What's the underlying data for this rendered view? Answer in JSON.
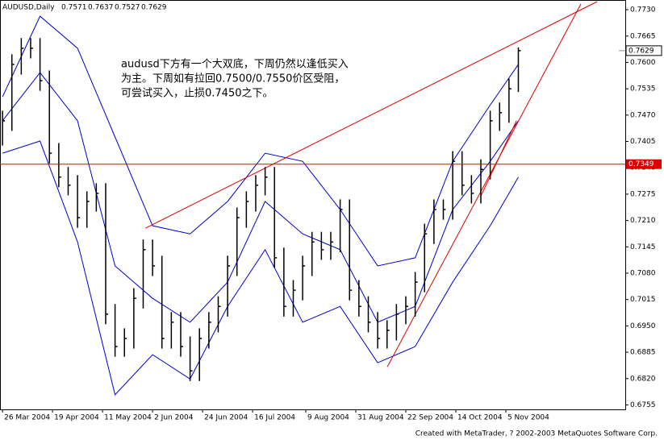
{
  "chart_data": {
    "type": "hlc",
    "title": "AUDUSD,Daily",
    "header_values": [
      0.7571,
      0.7637,
      0.7527,
      0.7629
    ],
    "annotation": [
      "audusd下方有一个大双底，下周仍然以逢低买入",
      "为主。下周如有拉回0.7500/0.7550价区受阻，",
      "可尝试买入，止损0.7450之下。"
    ],
    "footer": "Created with MetaTrader, ? 2002-2003 MetaQuotes Software Corp.",
    "color": "#000000",
    "x": [
      0,
      3,
      6,
      9,
      12,
      15,
      18,
      21,
      24,
      27,
      30,
      33,
      36,
      39,
      42,
      45,
      48,
      51,
      54,
      57,
      60,
      63,
      66,
      69,
      72,
      75,
      78,
      81,
      84,
      87,
      90,
      93,
      96,
      99,
      102,
      105,
      108,
      111,
      114,
      117,
      120,
      123,
      126,
      129,
      132,
      135,
      138,
      141,
      144,
      147,
      150,
      153,
      156,
      159,
      162,
      165
    ],
    "high": [
      0.7481,
      0.762,
      0.766,
      0.766,
      0.766,
      0.758,
      0.7401,
      0.7342,
      0.7322,
      0.7282,
      0.7302,
      0.7302,
      0.7004,
      0.6944,
      0.7043,
      0.7163,
      0.7163,
      0.7123,
      0.6984,
      0.6984,
      0.6924,
      0.6944,
      0.6984,
      0.7023,
      0.7123,
      0.7242,
      0.7282,
      0.7322,
      0.7342,
      0.7342,
      0.7143,
      0.7063,
      0.7123,
      0.7182,
      0.7182,
      0.7182,
      0.7262,
      0.7262,
      0.7063,
      0.7023,
      0.6984,
      0.6964,
      0.7004,
      0.7023,
      0.7083,
      0.7202,
      0.7262,
      0.7262,
      0.7381,
      0.7381,
      0.7322,
      0.7361,
      0.7481,
      0.7501,
      0.756,
      0.7637
    ],
    "low": [
      0.7395,
      0.7431,
      0.757,
      0.761,
      0.753,
      0.7351,
      0.7292,
      0.7272,
      0.7192,
      0.7192,
      0.7232,
      0.6954,
      0.6874,
      0.6874,
      0.6894,
      0.6993,
      0.7073,
      0.6894,
      0.6894,
      0.6874,
      0.6814,
      0.6814,
      0.6894,
      0.6934,
      0.6973,
      0.7073,
      0.7192,
      0.7232,
      0.7272,
      0.7093,
      0.6973,
      0.6973,
      0.7013,
      0.7073,
      0.7113,
      0.7113,
      0.7132,
      0.7013,
      0.6973,
      0.6934,
      0.6894,
      0.6894,
      0.6914,
      0.6954,
      0.6973,
      0.7033,
      0.7152,
      0.7212,
      0.7212,
      0.7272,
      0.7252,
      0.7252,
      0.7311,
      0.7431,
      0.7451,
      0.7527
    ],
    "close": [
      0.7456,
      0.7595,
      0.7635,
      0.7635,
      0.7555,
      0.7376,
      0.7317,
      0.7297,
      0.7217,
      0.7257,
      0.7277,
      0.6979,
      0.6899,
      0.6919,
      0.7018,
      0.7138,
      0.7098,
      0.6919,
      0.6959,
      0.6899,
      0.6839,
      0.6919,
      0.6959,
      0.6998,
      0.7098,
      0.7217,
      0.7257,
      0.7297,
      0.7317,
      0.7118,
      0.6998,
      0.7038,
      0.7098,
      0.7157,
      0.7138,
      0.7157,
      0.7237,
      0.7038,
      0.6998,
      0.6959,
      0.6919,
      0.6939,
      0.6979,
      0.6998,
      0.7058,
      0.7177,
      0.7237,
      0.7237,
      0.7356,
      0.7297,
      0.7277,
      0.7336,
      0.7456,
      0.7476,
      0.7535,
      0.7629
    ],
    "band_color": "#0000cc",
    "bands": [
      {
        "x": [
          0,
          12,
          24,
          36,
          48,
          60,
          72,
          84,
          96,
          108,
          120,
          132,
          144,
          156,
          165
        ],
        "values": [
          0.7515,
          0.7714,
          0.7635,
          0.7416,
          0.7197,
          0.7177,
          0.7257,
          0.7376,
          0.7356,
          0.7237,
          0.7098,
          0.7118,
          0.7356,
          0.7495,
          0.7595
        ]
      },
      {
        "x": [
          0,
          12,
          24,
          36,
          48,
          60,
          72,
          84,
          96,
          108,
          120,
          132,
          144,
          156,
          165
        ],
        "values": [
          0.7456,
          0.7575,
          0.7456,
          0.7098,
          0.7018,
          0.6959,
          0.7058,
          0.7257,
          0.7177,
          0.7138,
          0.6959,
          0.6998,
          0.7237,
          0.7356,
          0.7456
        ]
      },
      {
        "x": [
          0,
          12,
          24,
          36,
          48,
          60,
          72,
          84,
          96,
          108,
          120,
          132,
          144,
          156,
          165
        ],
        "values": [
          0.7376,
          0.7406,
          0.7157,
          0.678,
          0.6879,
          0.6819,
          0.6998,
          0.7138,
          0.6959,
          0.6998,
          0.6859,
          0.6899,
          0.7058,
          0.7197,
          0.7317
        ]
      }
    ],
    "line_color": "#dd0000",
    "trendlines": [
      {
        "x": [
          45.7,
          190.2
        ],
        "y": [
          0.7191,
          0.775
        ]
      },
      {
        "x": [
          123.1,
          185
        ],
        "y": [
          0.6849,
          0.7744
        ]
      },
      {
        "x": [
          152.8,
          164.4
        ],
        "y": [
          0.7267,
          0.7456
        ]
      }
    ],
    "hline": 0.7349,
    "last_price": 0.7629,
    "xlim": [
      -0.8,
      199.2
    ],
    "ylim": [
      0.6744,
      0.7752
    ],
    "xticks": [
      {
        "value": 0,
        "label": "26 Mar 2004"
      },
      {
        "value": 16,
        "label": "19 Apr 2004"
      },
      {
        "value": 32,
        "label": "11 May 2004"
      },
      {
        "value": 48,
        "label": "2 Jun 2004"
      },
      {
        "value": 64,
        "label": "24 Jun 2004"
      },
      {
        "value": 80,
        "label": "16 Jul 2004"
      },
      {
        "value": 97,
        "label": "9 Aug 2004"
      },
      {
        "value": 113,
        "label": "31 Aug 2004"
      },
      {
        "value": 129,
        "label": "22 Sep 2004"
      },
      {
        "value": 145,
        "label": "14 Oct 2004"
      },
      {
        "value": 161,
        "label": "5 Nov 2004"
      }
    ],
    "yticks": [
      {
        "value": 0.773,
        "label": "0.7730"
      },
      0.7665,
      {
        "value": 0.76,
        "label": "0.7600"
      },
      0.7535,
      {
        "value": 0.747,
        "label": "0.7470"
      },
      0.7405,
      {
        "value": 0.734,
        "label": "0.7340"
      },
      0.7275,
      {
        "value": 0.721,
        "label": "0.7210"
      },
      0.7145,
      {
        "value": 0.708,
        "label": "0.7080"
      },
      0.7015,
      {
        "value": 0.695,
        "label": "0.6950"
      },
      0.6885,
      {
        "value": 0.682,
        "label": "0.6820"
      },
      0.6755
    ]
  }
}
